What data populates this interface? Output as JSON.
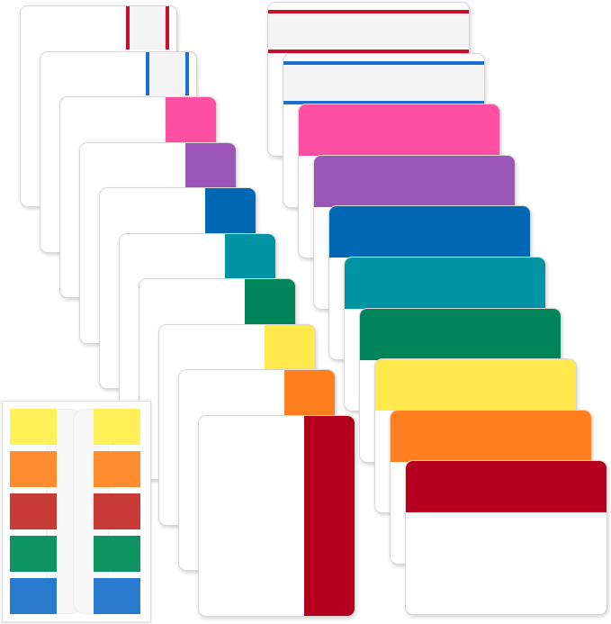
{
  "colors": {
    "red_line": "#c8102e",
    "blue_line": "#1a6fd0",
    "pink": "#ff4fa3",
    "purple": "#9b56b8",
    "blue": "#0068b2",
    "teal": "#0094a4",
    "green": "#00845a",
    "yellow": "#ffe94c",
    "orange": "#ff7f1e",
    "red": "#b4001e"
  },
  "vertical_tab_stack": [
    "red_line",
    "blue_line",
    "pink",
    "purple",
    "blue",
    "teal",
    "green",
    "yellow",
    "orange",
    "red"
  ],
  "horizontal_tab_stack": [
    "red_line",
    "blue_line",
    "pink",
    "purple",
    "blue",
    "teal",
    "green",
    "yellow",
    "orange",
    "red"
  ],
  "flag_pad": {
    "columns": 2,
    "rows": [
      "#fff059",
      "#ff8c2e",
      "#c83a36",
      "#0e9462",
      "#2a7ad0"
    ]
  }
}
